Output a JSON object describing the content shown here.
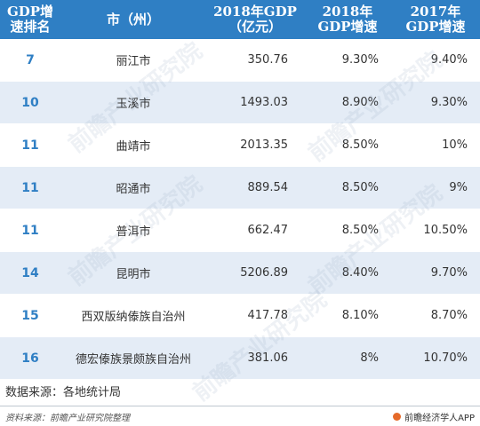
{
  "chart_data": {
    "type": "table",
    "columns": [
      "GDP增速排名",
      "市（州）",
      "2018年GDP（亿元）",
      "2018年GDP增速",
      "2017年GDP增速"
    ],
    "rows": [
      [
        "7",
        "丽江市",
        "350.76",
        "9.30%",
        "9.40%"
      ],
      [
        "10",
        "玉溪市",
        "1493.03",
        "8.90%",
        "9.30%"
      ],
      [
        "11",
        "曲靖市",
        "2013.35",
        "8.50%",
        "10%"
      ],
      [
        "11",
        "昭通市",
        "889.54",
        "8.50%",
        "9%"
      ],
      [
        "11",
        "普洱市",
        "662.47",
        "8.50%",
        "10.50%"
      ],
      [
        "14",
        "昆明市",
        "5206.89",
        "8.40%",
        "9.70%"
      ],
      [
        "15",
        "西双版纳傣族自治州",
        "417.78",
        "8.10%",
        "8.70%"
      ],
      [
        "16",
        "德宏傣族景颇族自治州",
        "381.06",
        "8%",
        "10.70%"
      ]
    ]
  },
  "header": {
    "rank_label": "GDP增速排名",
    "city_label": "市（州）",
    "gdp_label": "2018年GDP（亿元）",
    "growth2018_label": "2018年GDP增速",
    "growth2017_label": "2017年GDP增速"
  },
  "source_note": "数据来源：各地统计局",
  "footer": {
    "left": "资料来源：前瞻产业研究院整理",
    "right": "前瞻经济学人APP"
  },
  "watermark_text": "前瞻产业研究院",
  "colors": {
    "header_bg": "#2f7fc4",
    "row_alt_bg": "#e4ecf6",
    "rank_text": "#2f7fc4",
    "logo": "#e56a2a"
  }
}
